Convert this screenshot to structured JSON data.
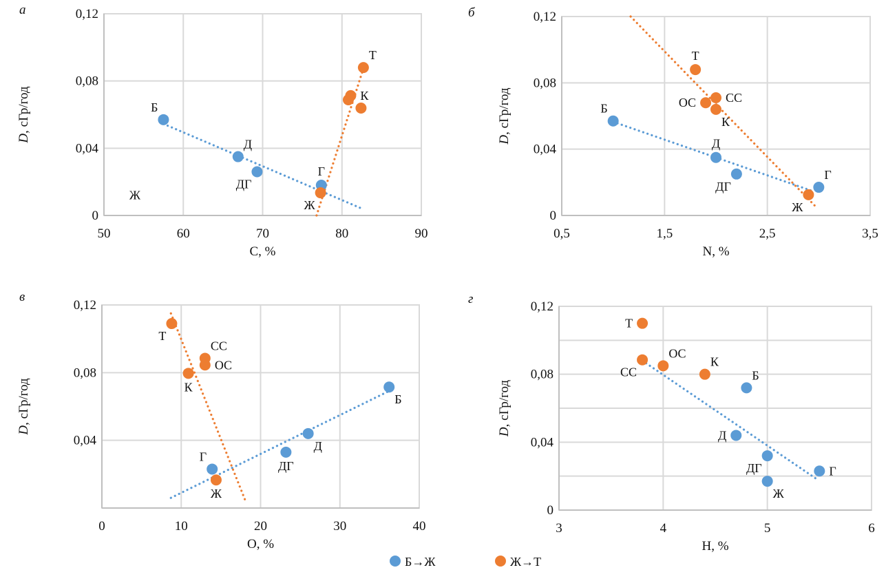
{
  "figure": {
    "legend": [
      {
        "key": "BZh",
        "label": "Б→Ж",
        "color": "#5b9bd5"
      },
      {
        "key": "ZhT",
        "label": "Ж→Т",
        "color": "#ed7d31"
      }
    ]
  },
  "chart_data": [
    {
      "id": "a",
      "type": "scatter",
      "panel_letter": "а",
      "title": "",
      "xlabel": "С, %",
      "ylabel_italic": "D",
      "ylabel_rest": ", сГр/год",
      "xlim": [
        50,
        90
      ],
      "ylim": [
        0,
        0.12
      ],
      "xticks": [
        50,
        60,
        70,
        80,
        90
      ],
      "xtick_labels": [
        "50",
        "60",
        "70",
        "80",
        "90"
      ],
      "yticks": [
        0,
        0.04,
        0.08,
        0.12
      ],
      "ytick_labels": [
        "0",
        "0,04",
        "0,08",
        "0,12"
      ],
      "hgrid": [
        0.04,
        0.08
      ],
      "grid": true,
      "series": [
        {
          "name": "Б→Ж",
          "color": "#5b9bd5",
          "points": [
            {
              "label": "Б",
              "x": 57.5,
              "y": 0.057,
              "pos": "tl"
            },
            {
              "label": "Д",
              "x": 66.9,
              "y": 0.035,
              "pos": "tr"
            },
            {
              "label": "ДГ",
              "x": 69.3,
              "y": 0.026,
              "pos": "bl"
            },
            {
              "label": "Г",
              "x": 77.4,
              "y": 0.018,
              "pos": "t"
            }
          ],
          "trendline": {
            "x": [
              57.5,
              82.7
            ],
            "y": [
              0.0545,
              0.0037
            ]
          }
        },
        {
          "name": "Ж→Т",
          "color": "#ed7d31",
          "points": [
            {
              "label": "Ж",
              "x": 77.3,
              "y": 0.0135,
              "pos": "bl"
            },
            {
              "label": "",
              "x": 80.8,
              "y": 0.0688,
              "pos": "none"
            },
            {
              "label": "К",
              "x": 81.1,
              "y": 0.0713,
              "pos": "r"
            },
            {
              "label": "",
              "x": 82.4,
              "y": 0.0639,
              "pos": "none"
            },
            {
              "label": "Т",
              "x": 82.7,
              "y": 0.088,
              "pos": "tr"
            }
          ],
          "trendline": {
            "x": [
              76.8,
              82.6
            ],
            "y": [
              0.0,
              0.086
            ]
          }
        }
      ],
      "annotations": [
        {
          "text": "Ж",
          "x": 53.9,
          "y": 0.012
        }
      ]
    },
    {
      "id": "b",
      "type": "scatter",
      "panel_letter": "б",
      "title": "",
      "xlabel": "N, %",
      "ylabel_italic": "D",
      "ylabel_rest": ", сГр/год",
      "xlim": [
        0.5,
        3.5
      ],
      "ylim": [
        0,
        0.12
      ],
      "xticks": [
        0.5,
        1.5,
        2.5,
        3.5
      ],
      "xtick_labels": [
        "0,5",
        "1,5",
        "2,5",
        "3,5"
      ],
      "yticks": [
        0,
        0.04,
        0.08,
        0.12
      ],
      "ytick_labels": [
        "0",
        "0,04",
        "0,08",
        "0,12"
      ],
      "hgrid": [
        0.04,
        0.08
      ],
      "grid": true,
      "series": [
        {
          "name": "Б→Ж",
          "color": "#5b9bd5",
          "points": [
            {
              "label": "Б",
              "x": 1.0,
              "y": 0.057,
              "pos": "tl"
            },
            {
              "label": "Д",
              "x": 2.0,
              "y": 0.035,
              "pos": "t"
            },
            {
              "label": "ДГ",
              "x": 2.2,
              "y": 0.025,
              "pos": "bl"
            },
            {
              "label": "Г",
              "x": 3.0,
              "y": 0.017,
              "pos": "tr"
            }
          ],
          "trendline": {
            "x": [
              1.0,
              2.95
            ],
            "y": [
              0.0565,
              0.0145
            ]
          }
        },
        {
          "name": "Ж→Т",
          "color": "#ed7d31",
          "points": [
            {
              "label": "Ж",
              "x": 2.9,
              "y": 0.0125,
              "pos": "bl"
            },
            {
              "label": "Т",
              "x": 1.8,
              "y": 0.088,
              "pos": "t"
            },
            {
              "label": "СС",
              "x": 2.0,
              "y": 0.071,
              "pos": "r"
            },
            {
              "label": "ОС",
              "x": 1.9,
              "y": 0.068,
              "pos": "l"
            },
            {
              "label": "К",
              "x": 2.0,
              "y": 0.064,
              "pos": "br"
            }
          ],
          "trendline": {
            "x": [
              1.17,
              2.96
            ],
            "y": [
              0.12,
              0.006
            ]
          }
        }
      ],
      "annotations": []
    },
    {
      "id": "v",
      "type": "scatter",
      "panel_letter": "в",
      "title": "",
      "xlabel": "О, %",
      "ylabel_italic": "D",
      "ylabel_rest": ", сГр/год",
      "xlim": [
        0,
        40
      ],
      "ylim": [
        0,
        0.12
      ],
      "xticks": [
        0,
        10,
        20,
        30,
        40
      ],
      "xtick_labels": [
        "0",
        "10",
        "20",
        "30",
        "40"
      ],
      "yticks": [
        0.04,
        0.08,
        0.12
      ],
      "ytick_labels": [
        "0,04",
        "0,08",
        "0,12"
      ],
      "hgrid": [
        0.04,
        0.08
      ],
      "grid": true,
      "series": [
        {
          "name": "Б→Ж",
          "color": "#5b9bd5",
          "points": [
            {
              "label": "Б",
              "x": 36.2,
              "y": 0.0715,
              "pos": "br"
            },
            {
              "label": "Д",
              "x": 26.0,
              "y": 0.044,
              "pos": "br"
            },
            {
              "label": "ДГ",
              "x": 23.2,
              "y": 0.033,
              "pos": "b"
            },
            {
              "label": "Г",
              "x": 13.9,
              "y": 0.023,
              "pos": "tl"
            }
          ],
          "trendline": {
            "x": [
              8.7,
              36.0
            ],
            "y": [
              0.006,
              0.0687
            ]
          }
        },
        {
          "name": "Ж→Т",
          "color": "#ed7d31",
          "points": [
            {
              "label": "Ж",
              "x": 14.4,
              "y": 0.0166,
              "pos": "b"
            },
            {
              "label": "Т",
              "x": 8.8,
              "y": 0.109,
              "pos": "bl"
            },
            {
              "label": "СС",
              "x": 13.0,
              "y": 0.0885,
              "pos": "tr"
            },
            {
              "label": "ОС",
              "x": 13.0,
              "y": 0.0845,
              "pos": "r"
            },
            {
              "label": "К",
              "x": 10.9,
              "y": 0.0796,
              "pos": "b"
            }
          ],
          "trendline": {
            "x": [
              8.7,
              18.2
            ],
            "y": [
              0.115,
              0.003
            ]
          }
        }
      ],
      "annotations": []
    },
    {
      "id": "g",
      "type": "scatter",
      "panel_letter": "г",
      "title": "",
      "xlabel": "H, %",
      "ylabel_italic": "D",
      "ylabel_rest": ", сГр/год",
      "xlim": [
        3,
        6
      ],
      "ylim": [
        0,
        0.12
      ],
      "xticks": [
        3,
        4,
        5,
        6
      ],
      "xtick_labels": [
        "3",
        "4",
        "5",
        "6"
      ],
      "yticks": [
        0,
        0.04,
        0.08,
        0.12
      ],
      "ytick_labels": [
        "0",
        "0,04",
        "0,08",
        "0,12"
      ],
      "hgrid": [
        0.02,
        0.04,
        0.06,
        0.08,
        0.1
      ],
      "grid": true,
      "series": [
        {
          "name": "Б→Ж",
          "color": "#5b9bd5",
          "points": [
            {
              "label": "Б",
              "x": 4.8,
              "y": 0.072,
              "pos": "tr"
            },
            {
              "label": "Д",
              "x": 4.7,
              "y": 0.044,
              "pos": "l"
            },
            {
              "label": "ДГ",
              "x": 5.0,
              "y": 0.032,
              "pos": "bl"
            },
            {
              "label": "Ж",
              "x": 5.0,
              "y": 0.017,
              "pos": "br"
            },
            {
              "label": "Г",
              "x": 5.5,
              "y": 0.023,
              "pos": "r"
            }
          ],
          "trendline": {
            "x": [
              3.8,
              5.48
            ],
            "y": [
              0.088,
              0.018
            ]
          }
        },
        {
          "name": "Ж→Т",
          "color": "#ed7d31",
          "points": [
            {
              "label": "Т",
              "x": 3.8,
              "y": 0.11,
              "pos": "l"
            },
            {
              "label": "СС",
              "x": 3.8,
              "y": 0.0885,
              "pos": "bl"
            },
            {
              "label": "ОС",
              "x": 4.0,
              "y": 0.085,
              "pos": "tr"
            },
            {
              "label": "К",
              "x": 4.4,
              "y": 0.08,
              "pos": "tr"
            }
          ],
          "trendline": null
        }
      ],
      "annotations": []
    }
  ]
}
